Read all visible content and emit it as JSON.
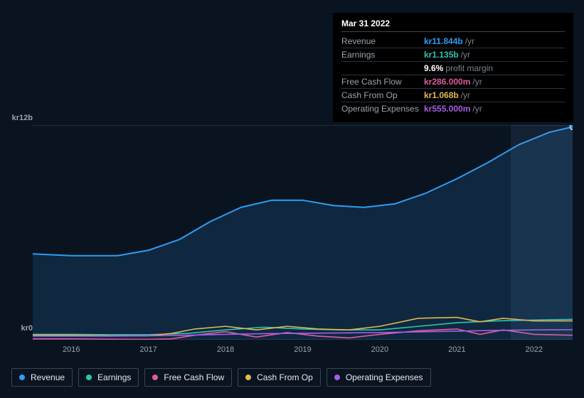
{
  "tooltip": {
    "title": "Mar 31 2022",
    "rows": [
      {
        "label": "Revenue",
        "value": "kr11.844b",
        "unit": "/yr",
        "color": "#2f9df4"
      },
      {
        "label": "Earnings",
        "value": "kr1.135b",
        "unit": "/yr",
        "color": "#2fc4b2",
        "sub_value": "9.6%",
        "sub_label": "profit margin"
      },
      {
        "label": "Free Cash Flow",
        "value": "kr286.000m",
        "unit": "/yr",
        "color": "#e05ca0"
      },
      {
        "label": "Cash From Op",
        "value": "kr1.068b",
        "unit": "/yr",
        "color": "#e0b94f"
      },
      {
        "label": "Operating Expenses",
        "value": "kr555.000m",
        "unit": "/yr",
        "color": "#a65ee6"
      }
    ]
  },
  "chart": {
    "type": "line-area",
    "background_color": "#0a1420",
    "grid_top_color": "#3a4552",
    "x_categories": [
      "2016",
      "2017",
      "2018",
      "2019",
      "2020",
      "2021",
      "2022"
    ],
    "x_range": [
      2015.5,
      2022.5
    ],
    "ylim": [
      0,
      12
    ],
    "y_unit": "kr b",
    "y_top_label": "kr12b",
    "y_bottom_label": "kr0",
    "highlight_from_x": 2021.7,
    "highlight_to_x": 2022.5,
    "series": [
      {
        "name": "Revenue",
        "color": "#2f9df4",
        "fill": true,
        "fill_opacity": 0.15,
        "line_width": 2,
        "points": [
          [
            2015.5,
            4.8
          ],
          [
            2016.0,
            4.7
          ],
          [
            2016.6,
            4.7
          ],
          [
            2017.0,
            5.0
          ],
          [
            2017.4,
            5.6
          ],
          [
            2017.8,
            6.6
          ],
          [
            2018.2,
            7.4
          ],
          [
            2018.6,
            7.8
          ],
          [
            2019.0,
            7.8
          ],
          [
            2019.4,
            7.5
          ],
          [
            2019.8,
            7.4
          ],
          [
            2020.2,
            7.6
          ],
          [
            2020.6,
            8.2
          ],
          [
            2021.0,
            9.0
          ],
          [
            2021.4,
            9.9
          ],
          [
            2021.8,
            10.9
          ],
          [
            2022.2,
            11.6
          ],
          [
            2022.5,
            11.9
          ]
        ]
      },
      {
        "name": "Earnings",
        "color": "#2fc4b2",
        "fill": false,
        "line_width": 1.6,
        "points": [
          [
            2015.5,
            0.3
          ],
          [
            2016.0,
            0.3
          ],
          [
            2016.5,
            0.28
          ],
          [
            2017.0,
            0.28
          ],
          [
            2017.5,
            0.35
          ],
          [
            2018.0,
            0.55
          ],
          [
            2018.5,
            0.7
          ],
          [
            2019.0,
            0.6
          ],
          [
            2019.5,
            0.55
          ],
          [
            2020.0,
            0.55
          ],
          [
            2020.5,
            0.75
          ],
          [
            2021.0,
            0.95
          ],
          [
            2021.5,
            1.05
          ],
          [
            2022.0,
            1.1
          ],
          [
            2022.5,
            1.14
          ]
        ]
      },
      {
        "name": "Free Cash Flow",
        "color": "#e05ca0",
        "fill": false,
        "line_width": 1.6,
        "points": [
          [
            2015.5,
            0.05
          ],
          [
            2016.0,
            0.05
          ],
          [
            2016.5,
            0.03
          ],
          [
            2017.0,
            0.02
          ],
          [
            2017.3,
            0.05
          ],
          [
            2017.6,
            0.25
          ],
          [
            2018.0,
            0.45
          ],
          [
            2018.4,
            0.15
          ],
          [
            2018.8,
            0.4
          ],
          [
            2019.2,
            0.2
          ],
          [
            2019.6,
            0.1
          ],
          [
            2020.0,
            0.3
          ],
          [
            2020.5,
            0.5
          ],
          [
            2021.0,
            0.6
          ],
          [
            2021.3,
            0.3
          ],
          [
            2021.6,
            0.55
          ],
          [
            2022.0,
            0.3
          ],
          [
            2022.5,
            0.25
          ]
        ]
      },
      {
        "name": "Cash From Op",
        "color": "#e0b94f",
        "fill": false,
        "line_width": 1.6,
        "points": [
          [
            2015.5,
            0.25
          ],
          [
            2016.0,
            0.25
          ],
          [
            2016.5,
            0.22
          ],
          [
            2017.0,
            0.22
          ],
          [
            2017.3,
            0.35
          ],
          [
            2017.6,
            0.6
          ],
          [
            2018.0,
            0.75
          ],
          [
            2018.4,
            0.55
          ],
          [
            2018.8,
            0.75
          ],
          [
            2019.2,
            0.6
          ],
          [
            2019.6,
            0.55
          ],
          [
            2020.0,
            0.75
          ],
          [
            2020.5,
            1.2
          ],
          [
            2021.0,
            1.25
          ],
          [
            2021.3,
            1.0
          ],
          [
            2021.6,
            1.2
          ],
          [
            2022.0,
            1.05
          ],
          [
            2022.5,
            1.05
          ]
        ]
      },
      {
        "name": "Operating Expenses",
        "color": "#a65ee6",
        "fill": false,
        "line_width": 1.6,
        "points": [
          [
            2015.5,
            0.2
          ],
          [
            2016.0,
            0.2
          ],
          [
            2016.5,
            0.2
          ],
          [
            2017.0,
            0.22
          ],
          [
            2017.5,
            0.25
          ],
          [
            2018.0,
            0.3
          ],
          [
            2018.5,
            0.34
          ],
          [
            2019.0,
            0.36
          ],
          [
            2019.5,
            0.38
          ],
          [
            2020.0,
            0.4
          ],
          [
            2020.5,
            0.44
          ],
          [
            2021.0,
            0.48
          ],
          [
            2021.5,
            0.52
          ],
          [
            2022.0,
            0.55
          ],
          [
            2022.5,
            0.56
          ]
        ]
      }
    ],
    "x_label_fontsize": 11,
    "y_label_fontsize": 11,
    "legend_fontsize": 12
  },
  "legend": [
    {
      "label": "Revenue",
      "color": "#2f9df4"
    },
    {
      "label": "Earnings",
      "color": "#2fc4b2"
    },
    {
      "label": "Free Cash Flow",
      "color": "#e05ca0"
    },
    {
      "label": "Cash From Op",
      "color": "#e0b94f"
    },
    {
      "label": "Operating Expenses",
      "color": "#a65ee6"
    }
  ]
}
